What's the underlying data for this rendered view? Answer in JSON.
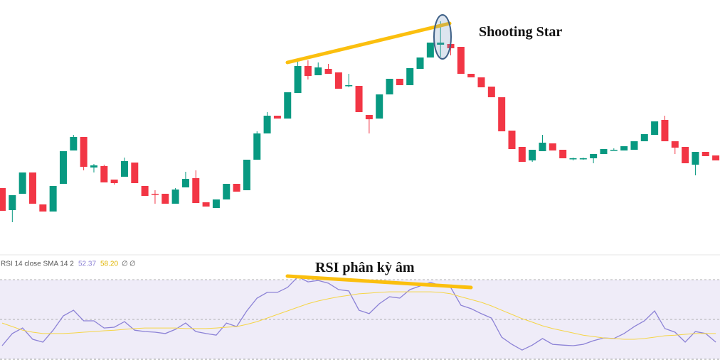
{
  "chart_data": [
    {
      "type": "candlestick",
      "annotation": "Shooting Star",
      "open": [
        95,
        64,
        87,
        117,
        72,
        62,
        101,
        148,
        167,
        124,
        126,
        107,
        111,
        131,
        98,
        87,
        87,
        73,
        96,
        109,
        75,
        67,
        79,
        101,
        92,
        135,
        172,
        197,
        193,
        229,
        267,
        254,
        263,
        258,
        240,
        239,
        198,
        193,
        227,
        249,
        240,
        263,
        279,
        297,
        298,
        294,
        256,
        251,
        238,
        223,
        176,
        153,
        134,
        147,
        158,
        149,
        137,
        137,
        137,
        143,
        149,
        148,
        149,
        161,
        170,
        191,
        161,
        153,
        128,
        146,
        141
      ],
      "high": [
        95,
        85,
        117,
        117,
        72,
        98,
        147,
        170,
        167,
        129,
        128,
        107,
        138,
        131,
        98,
        92,
        87,
        95,
        118,
        120,
        75,
        79,
        101,
        101,
        135,
        175,
        202,
        197,
        230,
        273,
        275,
        272,
        270,
        258,
        256,
        239,
        198,
        227,
        249,
        249,
        264,
        279,
        300,
        330,
        298,
        294,
        256,
        251,
        238,
        223,
        176,
        153,
        149,
        170,
        158,
        149,
        138,
        138,
        143,
        150,
        151,
        154,
        161,
        171,
        189,
        197,
        161,
        153,
        146,
        146,
        141
      ],
      "low": [
        63,
        47,
        87,
        73,
        62,
        62,
        101,
        148,
        120,
        117,
        103,
        100,
        111,
        102,
        84,
        73,
        73,
        73,
        96,
        74,
        69,
        67,
        79,
        90,
        92,
        135,
        172,
        193,
        193,
        229,
        248,
        254,
        256,
        235,
        237,
        202,
        172,
        193,
        227,
        240,
        240,
        263,
        279,
        280,
        282,
        256,
        251,
        237,
        223,
        175,
        150,
        132,
        132,
        147,
        148,
        137,
        134,
        135,
        130,
        143,
        148,
        148,
        149,
        161,
        170,
        161,
        143,
        130,
        113,
        140,
        134
      ],
      "close": [
        63,
        85,
        117,
        73,
        62,
        98,
        147,
        167,
        125,
        127,
        103,
        102,
        133,
        102,
        84,
        86,
        73,
        93,
        108,
        74,
        69,
        79,
        101,
        90,
        135,
        172,
        197,
        193,
        230,
        267,
        253,
        265,
        256,
        235,
        240,
        202,
        192,
        227,
        249,
        240,
        264,
        279,
        300,
        300,
        292,
        256,
        251,
        237,
        223,
        175,
        150,
        132,
        149,
        159,
        148,
        137,
        137,
        137,
        143,
        150,
        149,
        154,
        161,
        171,
        189,
        161,
        152,
        130,
        146,
        140,
        134
      ],
      "ylim": [
        0,
        360
      ],
      "up_color": "#089981",
      "down_color": "#f23645"
    },
    {
      "type": "line",
      "title": "RSI 14 close SMA 14 2",
      "legend_values": [
        "52.37",
        "58.20",
        "∅",
        "∅"
      ],
      "annotation": "RSI phân kỳ âm",
      "series": [
        {
          "color": "#8c82d6",
          "values": [
            36.8,
            42.9,
            45.7,
            40.0,
            38.6,
            44.6,
            51.8,
            54.6,
            49.3,
            49.3,
            45.7,
            46.1,
            48.9,
            44.6,
            43.9,
            43.6,
            42.9,
            45.0,
            48.2,
            43.9,
            42.9,
            42.1,
            48.2,
            46.4,
            54.3,
            60.7,
            63.6,
            63.6,
            66.1,
            71.4,
            68.9,
            69.6,
            68.2,
            65.0,
            64.3,
            54.6,
            52.9,
            57.9,
            61.4,
            60.7,
            65.0,
            66.8,
            68.6,
            67.1,
            66.1,
            57.1,
            55.4,
            52.9,
            50.7,
            41.1,
            37.5,
            34.6,
            37.1,
            40.4,
            37.5,
            37.1,
            36.8,
            37.5,
            39.3,
            40.7,
            40.4,
            42.9,
            46.4,
            49.3,
            54.3,
            45.4,
            43.6,
            38.6,
            43.9,
            42.9,
            38.6
          ]
        },
        {
          "color": "#f5d547",
          "values": [
            48.2,
            46.4,
            44.6,
            43.6,
            42.9,
            42.9,
            42.9,
            43.2,
            43.6,
            43.9,
            44.3,
            44.6,
            45.0,
            45.4,
            45.7,
            45.7,
            45.7,
            45.7,
            45.4,
            45.4,
            45.4,
            45.7,
            46.1,
            46.4,
            47.5,
            48.9,
            50.7,
            52.5,
            54.3,
            56.1,
            57.9,
            59.3,
            60.4,
            61.4,
            62.1,
            62.9,
            63.2,
            63.6,
            63.9,
            63.9,
            63.9,
            63.9,
            63.9,
            63.6,
            62.9,
            61.4,
            60.0,
            58.6,
            56.8,
            54.6,
            52.5,
            50.4,
            48.6,
            46.8,
            45.4,
            44.3,
            43.2,
            42.1,
            41.4,
            40.7,
            40.4,
            40.0,
            40.0,
            40.4,
            41.1,
            41.8,
            42.1,
            42.5,
            42.9,
            42.9,
            42.9
          ]
        }
      ],
      "levels": [
        70,
        50,
        30
      ],
      "ylim": [
        28.6,
        73.2
      ],
      "band_color": "#efecf8"
    }
  ]
}
